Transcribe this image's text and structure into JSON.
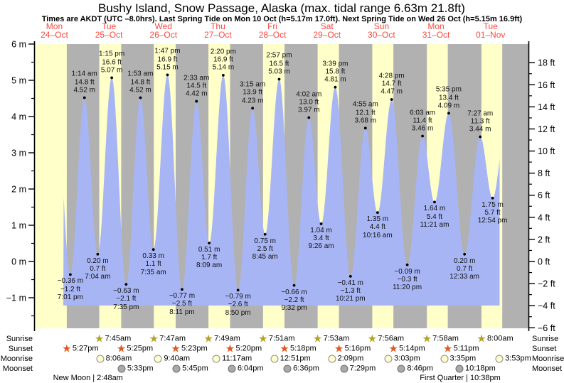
{
  "title": "Bushy Island, Snow Passage, Alaska (max. tidal range 6.63m 21.8ft)",
  "subtitle": "Times are AKDT (UTC –8.0hrs). Last Spring Tide on Mon 10 Oct (h=5.17m 17.0ft). Next Spring Tide on Wed 26 Oct (h=5.15m 16.9ft)",
  "chart_data": {
    "type": "area",
    "description": "Tide height curve over 9 days with day/night bands",
    "ylim_m": [
      -1.84,
      6
    ],
    "days": [
      {
        "name": "Mon",
        "date": "24–Oct"
      },
      {
        "name": "Tue",
        "date": "25–Oct"
      },
      {
        "name": "Wed",
        "date": "26–Oct"
      },
      {
        "name": "Thu",
        "date": "27–Oct"
      },
      {
        "name": "Fri",
        "date": "28–Oct"
      },
      {
        "name": "Sat",
        "date": "29–Oct"
      },
      {
        "name": "Sun",
        "date": "30–Oct"
      },
      {
        "name": "Mon",
        "date": "31–Oct"
      },
      {
        "name": "Tue",
        "date": "01–Nov"
      }
    ],
    "axis_left": {
      "unit": "m",
      "labels": [
        "6 m",
        "5 m",
        "4 m",
        "3 m",
        "2 m",
        "1 m",
        "0 m",
        "−1 m"
      ],
      "values": [
        6,
        5,
        4,
        3,
        2,
        1,
        0,
        -1
      ]
    },
    "axis_right": {
      "unit": "ft",
      "labels": [
        "18 ft",
        "16 ft",
        "14 ft",
        "12 ft",
        "10 ft",
        "8 ft",
        "6 ft",
        "4 ft",
        "2 ft",
        "0 ft",
        "−2 ft",
        "−4 ft",
        "−6 ft"
      ],
      "values": [
        18,
        16,
        14,
        12,
        10,
        8,
        6,
        4,
        2,
        0,
        -2,
        -4,
        -6
      ]
    },
    "tide_events": [
      {
        "day": 0,
        "time": "7:01 pm",
        "kind": "low",
        "height_m": -0.36,
        "label_m": "−0.36 m",
        "label_ft": "−1.2 ft"
      },
      {
        "day": 1,
        "time": "1:14 am",
        "kind": "high",
        "height_m": 4.52,
        "label_m": "4.52 m",
        "label_ft": "14.8 ft"
      },
      {
        "day": 1,
        "time": "7:04 am",
        "kind": "low",
        "height_m": 0.2,
        "label_m": "0.20 m",
        "label_ft": "0.7 ft"
      },
      {
        "day": 1,
        "time": "1:15 pm",
        "kind": "high",
        "height_m": 5.07,
        "label_m": "5.07 m",
        "label_ft": "16.6 ft"
      },
      {
        "day": 1,
        "time": "7:35 pm",
        "kind": "low",
        "height_m": -0.63,
        "label_m": "−0.63 m",
        "label_ft": "−2.1 ft"
      },
      {
        "day": 2,
        "time": "1:53 am",
        "kind": "high",
        "height_m": 4.52,
        "label_m": "4.52 m",
        "label_ft": "14.8 ft"
      },
      {
        "day": 2,
        "time": "7:35 am",
        "kind": "low",
        "height_m": 0.33,
        "label_m": "0.33 m",
        "label_ft": "1.1 ft"
      },
      {
        "day": 2,
        "time": "1:47 pm",
        "kind": "high",
        "height_m": 5.15,
        "label_m": "5.15 m",
        "label_ft": "16.9 ft"
      },
      {
        "day": 2,
        "time": "8:11 pm",
        "kind": "low",
        "height_m": -0.77,
        "label_m": "−0.77 m",
        "label_ft": "−2.5 ft"
      },
      {
        "day": 3,
        "time": "2:33 am",
        "kind": "high",
        "height_m": 4.42,
        "label_m": "4.42 m",
        "label_ft": "14.5 ft"
      },
      {
        "day": 3,
        "time": "8:09 am",
        "kind": "low",
        "height_m": 0.51,
        "label_m": "0.51 m",
        "label_ft": "1.7 ft"
      },
      {
        "day": 3,
        "time": "2:20 pm",
        "kind": "high",
        "height_m": 5.14,
        "label_m": "5.14 m",
        "label_ft": "16.9 ft"
      },
      {
        "day": 3,
        "time": "8:50 pm",
        "kind": "low",
        "height_m": -0.79,
        "label_m": "−0.79 m",
        "label_ft": "−2.6 ft"
      },
      {
        "day": 4,
        "time": "3:15 am",
        "kind": "high",
        "height_m": 4.23,
        "label_m": "4.23 m",
        "label_ft": "13.9 ft"
      },
      {
        "day": 4,
        "time": "8:45 am",
        "kind": "low",
        "height_m": 0.75,
        "label_m": "0.75 m",
        "label_ft": "2.5 ft"
      },
      {
        "day": 4,
        "time": "2:57 pm",
        "kind": "high",
        "height_m": 5.03,
        "label_m": "5.03 m",
        "label_ft": "16.5 ft"
      },
      {
        "day": 4,
        "time": "9:32 pm",
        "kind": "low",
        "height_m": -0.66,
        "label_m": "−0.66 m",
        "label_ft": "−2.2 ft"
      },
      {
        "day": 5,
        "time": "4:02 am",
        "kind": "high",
        "height_m": 3.97,
        "label_m": "3.97 m",
        "label_ft": "13.0 ft"
      },
      {
        "day": 5,
        "time": "9:26 am",
        "kind": "low",
        "height_m": 1.04,
        "label_m": "1.04 m",
        "label_ft": "3.4 ft"
      },
      {
        "day": 5,
        "time": "3:39 pm",
        "kind": "high",
        "height_m": 4.81,
        "label_m": "4.81 m",
        "label_ft": "15.8 ft"
      },
      {
        "day": 5,
        "time": "10:21 pm",
        "kind": "low",
        "height_m": -0.41,
        "label_m": "−0.41 m",
        "label_ft": "−1.3 ft"
      },
      {
        "day": 6,
        "time": "4:55 am",
        "kind": "high",
        "height_m": 3.68,
        "label_m": "3.68 m",
        "label_ft": "12.1 ft"
      },
      {
        "day": 6,
        "time": "10:16 am",
        "kind": "low",
        "height_m": 1.35,
        "label_m": "1.35 m",
        "label_ft": "4.4 ft"
      },
      {
        "day": 6,
        "time": "4:28 pm",
        "kind": "high",
        "height_m": 4.47,
        "label_m": "4.47 m",
        "label_ft": "14.7 ft"
      },
      {
        "day": 6,
        "time": "11:20 pm",
        "kind": "low",
        "height_m": -0.09,
        "label_m": "−0.09 m",
        "label_ft": "−0.3 ft"
      },
      {
        "day": 7,
        "time": "6:03 am",
        "kind": "high",
        "height_m": 3.46,
        "label_m": "3.46 m",
        "label_ft": "11.4 ft"
      },
      {
        "day": 7,
        "time": "11:21 am",
        "kind": "low",
        "height_m": 1.64,
        "label_m": "1.64 m",
        "label_ft": "5.4 ft"
      },
      {
        "day": 7,
        "time": "5:35 pm",
        "kind": "high",
        "height_m": 4.09,
        "label_m": "4.09 m",
        "label_ft": "13.4 ft"
      },
      {
        "day": 8,
        "time": "12:33 am",
        "kind": "low",
        "height_m": 0.2,
        "label_m": "0.20 m",
        "label_ft": "0.7 ft"
      },
      {
        "day": 8,
        "time": "7:27 am",
        "kind": "high",
        "height_m": 3.44,
        "label_m": "3.44 m",
        "label_ft": "11.3 ft"
      },
      {
        "day": 8,
        "time": "12:54 pm",
        "kind": "low",
        "height_m": 1.75,
        "label_m": "1.75 m",
        "label_ft": "5.7 ft"
      }
    ],
    "almanac": {
      "row_labels": {
        "sunrise": "Sunrise",
        "sunset": "Sunset",
        "moonrise": "Moonrise",
        "moonset": "Moonset"
      },
      "sunrise": [
        {
          "day": 1,
          "time": "7:45am"
        },
        {
          "day": 2,
          "time": "7:47am"
        },
        {
          "day": 3,
          "time": "7:49am"
        },
        {
          "day": 4,
          "time": "7:51am"
        },
        {
          "day": 5,
          "time": "7:53am"
        },
        {
          "day": 6,
          "time": "7:56am"
        },
        {
          "day": 7,
          "time": "7:58am"
        },
        {
          "day": 8,
          "time": "8:00am"
        }
      ],
      "sunset": [
        {
          "day": 0,
          "time": "5:27pm"
        },
        {
          "day": 1,
          "time": "5:25pm"
        },
        {
          "day": 2,
          "time": "5:23pm"
        },
        {
          "day": 3,
          "time": "5:20pm"
        },
        {
          "day": 4,
          "time": "5:18pm"
        },
        {
          "day": 5,
          "time": "5:16pm"
        },
        {
          "day": 6,
          "time": "5:14pm"
        },
        {
          "day": 7,
          "time": "5:11pm"
        }
      ],
      "moonrise": [
        {
          "day": 1,
          "time": "8:06am"
        },
        {
          "day": 2,
          "time": "9:40am"
        },
        {
          "day": 3,
          "time": "11:17am"
        },
        {
          "day": 4,
          "time": "12:51pm"
        },
        {
          "day": 5,
          "time": "2:09pm"
        },
        {
          "day": 6,
          "time": "3:03pm"
        },
        {
          "day": 7,
          "time": "3:35pm"
        },
        {
          "day": 8,
          "time": "3:53pm"
        }
      ],
      "moonset": [
        {
          "day": 1,
          "time": "5:33pm"
        },
        {
          "day": 2,
          "time": "5:45pm"
        },
        {
          "day": 3,
          "time": "6:04pm"
        },
        {
          "day": 4,
          "time": "6:36pm"
        },
        {
          "day": 5,
          "time": "7:29pm"
        },
        {
          "day": 6,
          "time": "8:46pm"
        },
        {
          "day": 7,
          "time": "10:18pm"
        }
      ],
      "phases": [
        {
          "day": 1,
          "label": "New Moon",
          "time": "2:48am"
        },
        {
          "day": 7,
          "label": "First Quarter",
          "time": "10:38pm"
        }
      ]
    }
  },
  "colors": {
    "daylight_band": "#ffffca",
    "night_band": "#b1b1b1",
    "tide_fill": "#a8b5f4",
    "day_label": "#fa4a42",
    "sunrise_star": "#b3a226",
    "sunset_star": "#e2581e",
    "moonrise_circle": "#ffffcc",
    "moonrise_border": "#8a8a8a",
    "moonset_circle": "#a9a9a9",
    "moonset_border": "#6e6e6e"
  }
}
